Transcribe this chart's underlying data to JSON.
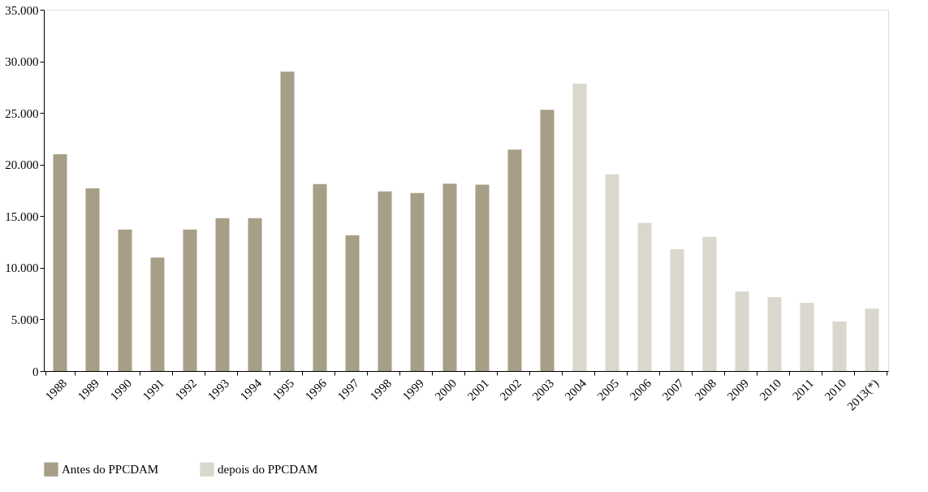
{
  "chart_data": {
    "type": "bar",
    "categories": [
      "1988",
      "1989",
      "1990",
      "1991",
      "1992",
      "1993",
      "1994",
      "1995",
      "1996",
      "1997",
      "1998",
      "1999",
      "2000",
      "2001",
      "2002",
      "2003",
      "2004",
      "2005",
      "2006",
      "2007",
      "2008",
      "2009",
      "2010",
      "2011",
      "2010",
      "2013(*)"
    ],
    "series": [
      {
        "name": "Antes do PPCDAM",
        "color": "#a69e86",
        "values": [
          21000,
          17700,
          13700,
          11000,
          13700,
          14800,
          14800,
          29000,
          18100,
          13150,
          17400,
          17250,
          18150,
          18050,
          21450,
          25300,
          null,
          null,
          null,
          null,
          null,
          null,
          null,
          null,
          null,
          null
        ]
      },
      {
        "name": "depois do PPCDAM",
        "color": "#dad8cc",
        "values": [
          null,
          null,
          null,
          null,
          null,
          null,
          null,
          null,
          null,
          null,
          null,
          null,
          null,
          null,
          null,
          null,
          27850,
          19050,
          14350,
          11800,
          13000,
          7700,
          7150,
          6600,
          4800,
          6050
        ]
      }
    ],
    "ylim": [
      0,
      35000
    ],
    "yticks": [
      {
        "value": 0,
        "label": "0"
      },
      {
        "value": 5000,
        "label": "5.000"
      },
      {
        "value": 10000,
        "label": "10.000"
      },
      {
        "value": 15000,
        "label": "15.000"
      },
      {
        "value": 20000,
        "label": "20.000"
      },
      {
        "value": 25000,
        "label": "25.000"
      },
      {
        "value": 30000,
        "label": "30.000"
      },
      {
        "value": 35000,
        "label": "35.000"
      }
    ],
    "grid": false,
    "legend": "bottom"
  }
}
